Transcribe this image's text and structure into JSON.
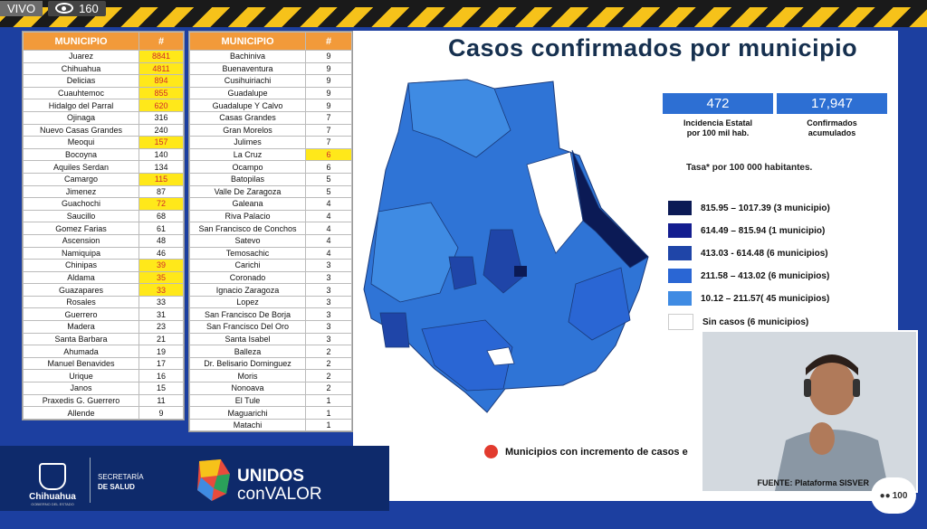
{
  "stream": {
    "live_label": "VIVO",
    "viewers": "160"
  },
  "title_main": "Casos confirmados por municipio",
  "stats": [
    {
      "value": "472",
      "label_1": "Incidencia Estatal",
      "label_2": "por 100 mil hab."
    },
    {
      "value": "17,947",
      "label_1": "Confirmados",
      "label_2": "acumulados"
    }
  ],
  "tasa_note": "Tasa* por 100 000 habitantes.",
  "legend": [
    {
      "range": "815.95 – 1017.39 (3 municipio)",
      "color": "#0b1a55"
    },
    {
      "range": "614.49 – 815.94 (1 municipio)",
      "color": "#131d8f"
    },
    {
      "range": "413.03 - 614.48 (6 municipios)",
      "color": "#1f45a8"
    },
    {
      "range": "211.58 – 413.02 (6 municipios)",
      "color": "#2a66d4"
    },
    {
      "range": "10.12 – 211.57( 45 municipios)",
      "color": "#3f8be3"
    },
    {
      "range": "Sin casos (6 municipios)",
      "color": "#ffffff"
    }
  ],
  "increment_note": "Municipios con incremento de casos e",
  "source": "FUENTE: Plataforma SISVER",
  "table_header": {
    "municipio": "MUNICIPIO",
    "count": "#"
  },
  "table1": [
    {
      "name": "Juarez",
      "n": "8841",
      "hl": true
    },
    {
      "name": "Chihuahua",
      "n": "4811",
      "hl": true
    },
    {
      "name": "Delicias",
      "n": "894",
      "hl": true
    },
    {
      "name": "Cuauhtemoc",
      "n": "855",
      "hl": true
    },
    {
      "name": "Hidalgo del Parral",
      "n": "620",
      "hl": true
    },
    {
      "name": "Ojinaga",
      "n": "316",
      "hl": false
    },
    {
      "name": "Nuevo Casas Grandes",
      "n": "240",
      "hl": false
    },
    {
      "name": "Meoqui",
      "n": "157",
      "hl": true
    },
    {
      "name": "Bocoyna",
      "n": "140",
      "hl": false
    },
    {
      "name": "Aquiles Serdan",
      "n": "134",
      "hl": false
    },
    {
      "name": "Camargo",
      "n": "115",
      "hl": true
    },
    {
      "name": "Jimenez",
      "n": "87",
      "hl": false
    },
    {
      "name": "Guachochi",
      "n": "72",
      "hl": true
    },
    {
      "name": "Saucillo",
      "n": "68",
      "hl": false
    },
    {
      "name": "Gomez Farias",
      "n": "61",
      "hl": false
    },
    {
      "name": "Ascension",
      "n": "48",
      "hl": false
    },
    {
      "name": "Namiquipa",
      "n": "46",
      "hl": false
    },
    {
      "name": "Chinipas",
      "n": "39",
      "hl": true
    },
    {
      "name": "Aldama",
      "n": "35",
      "hl": true
    },
    {
      "name": "Guazapares",
      "n": "33",
      "hl": true
    },
    {
      "name": "Rosales",
      "n": "33",
      "hl": false
    },
    {
      "name": "Guerrero",
      "n": "31",
      "hl": false
    },
    {
      "name": "Madera",
      "n": "23",
      "hl": false
    },
    {
      "name": "Santa Barbara",
      "n": "21",
      "hl": false
    },
    {
      "name": "Ahumada",
      "n": "19",
      "hl": false
    },
    {
      "name": "Manuel Benavides",
      "n": "17",
      "hl": false
    },
    {
      "name": "Urique",
      "n": "16",
      "hl": false
    },
    {
      "name": "Janos",
      "n": "15",
      "hl": false
    },
    {
      "name": "Praxedis G. Guerrero",
      "n": "11",
      "hl": false
    },
    {
      "name": "Allende",
      "n": "9",
      "hl": false
    }
  ],
  "table2": [
    {
      "name": "Bachiniva",
      "n": "9",
      "hl": false
    },
    {
      "name": "Buenaventura",
      "n": "9",
      "hl": false
    },
    {
      "name": "Cusihuiriachi",
      "n": "9",
      "hl": false
    },
    {
      "name": "Guadalupe",
      "n": "9",
      "hl": false
    },
    {
      "name": "Guadalupe Y Calvo",
      "n": "9",
      "hl": false
    },
    {
      "name": "Casas Grandes",
      "n": "7",
      "hl": false
    },
    {
      "name": "Gran Morelos",
      "n": "7",
      "hl": false
    },
    {
      "name": "Julimes",
      "n": "7",
      "hl": false
    },
    {
      "name": "La Cruz",
      "n": "6",
      "hl": true
    },
    {
      "name": "Ocampo",
      "n": "6",
      "hl": false
    },
    {
      "name": "Batopilas",
      "n": "5",
      "hl": false
    },
    {
      "name": "Valle De Zaragoza",
      "n": "5",
      "hl": false
    },
    {
      "name": "Galeana",
      "n": "4",
      "hl": false
    },
    {
      "name": "Riva Palacio",
      "n": "4",
      "hl": false
    },
    {
      "name": "San Francisco de Conchos",
      "n": "4",
      "hl": false
    },
    {
      "name": "Satevo",
      "n": "4",
      "hl": false
    },
    {
      "name": "Temosachic",
      "n": "4",
      "hl": false
    },
    {
      "name": "Carichi",
      "n": "3",
      "hl": false
    },
    {
      "name": "Coronado",
      "n": "3",
      "hl": false
    },
    {
      "name": "Ignacio Zaragoza",
      "n": "3",
      "hl": false
    },
    {
      "name": "Lopez",
      "n": "3",
      "hl": false
    },
    {
      "name": "San Francisco De Borja",
      "n": "3",
      "hl": false
    },
    {
      "name": "San Francisco Del Oro",
      "n": "3",
      "hl": false
    },
    {
      "name": "Santa Isabel",
      "n": "3",
      "hl": false
    },
    {
      "name": "Balleza",
      "n": "2",
      "hl": false
    },
    {
      "name": "Dr. Belisario Dominguez",
      "n": "2",
      "hl": false
    },
    {
      "name": "Moris",
      "n": "2",
      "hl": false
    },
    {
      "name": "Nonoava",
      "n": "2",
      "hl": false
    },
    {
      "name": "El Tule",
      "n": "1",
      "hl": false
    },
    {
      "name": "Maguarichi",
      "n": "1",
      "hl": false
    },
    {
      "name": "Matachi",
      "n": "1",
      "hl": false
    }
  ],
  "footer": {
    "city": "Chihuahua",
    "gov": "GOBIERNO DEL ESTADO",
    "secretaria_1": "SECRETARÍA",
    "secretaria_2": "DE SALUD",
    "brand_1": "UNIDOS",
    "brand_2": "conVALOR"
  },
  "participants": "100"
}
